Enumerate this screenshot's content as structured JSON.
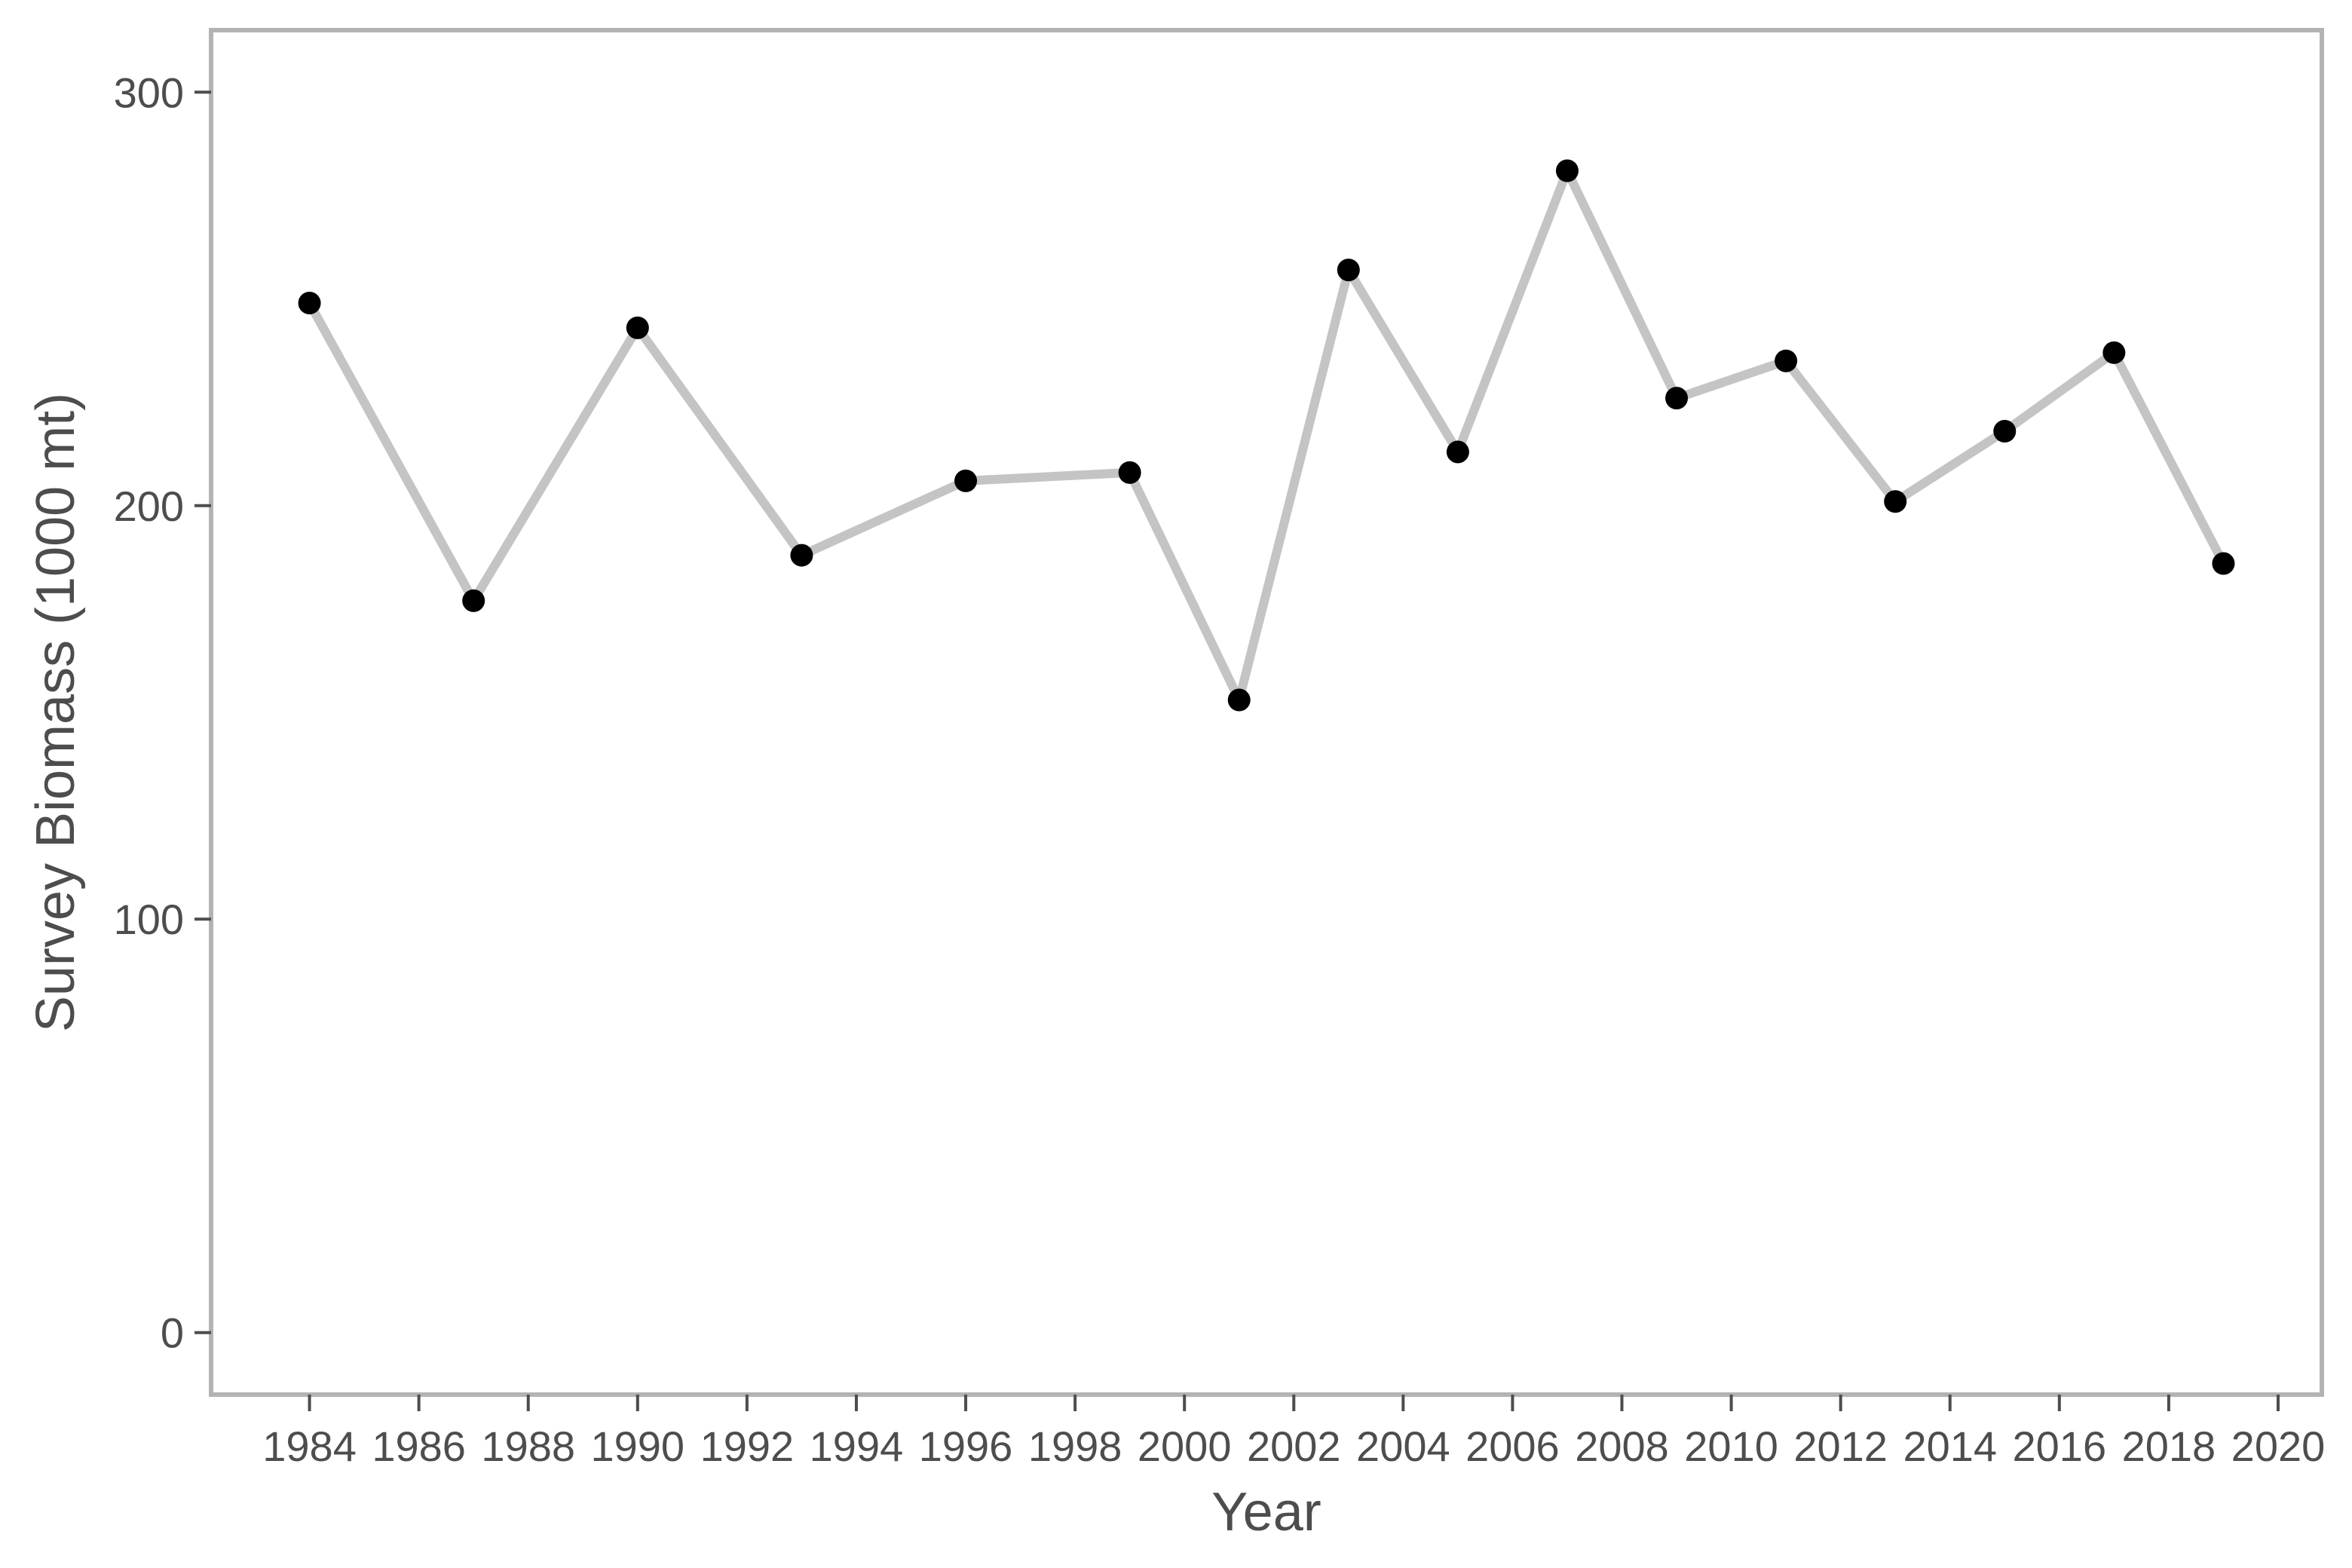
{
  "colors": {
    "line": "#c4c4c4",
    "point": "#000000",
    "frame": "#b3b3b3",
    "tick": "#4d4d4d",
    "text": "#4d4d4d"
  },
  "chart_data": {
    "type": "line",
    "xlabel": "Year",
    "ylabel": "Survey Biomass (1000 mt)",
    "xlim": [
      1982.2,
      2020.8
    ],
    "ylim": [
      -15,
      315
    ],
    "x_ticks": [
      1984,
      1986,
      1988,
      1990,
      1992,
      1994,
      1996,
      1998,
      2000,
      2002,
      2004,
      2006,
      2008,
      2010,
      2012,
      2014,
      2016,
      2018,
      2020
    ],
    "y_ticks": [
      0,
      100,
      200,
      300
    ],
    "grid": false,
    "legend": "none",
    "series": [
      {
        "x": [
          1984,
          1987,
          1990,
          1993,
          1996,
          1999,
          2001,
          2003,
          2005,
          2007,
          2009,
          2011,
          2013,
          2015,
          2017,
          2019
        ],
        "y": [
          249,
          177,
          243,
          188,
          206,
          208,
          153,
          257,
          213,
          281,
          226,
          235,
          201,
          218,
          237,
          186
        ]
      }
    ]
  }
}
